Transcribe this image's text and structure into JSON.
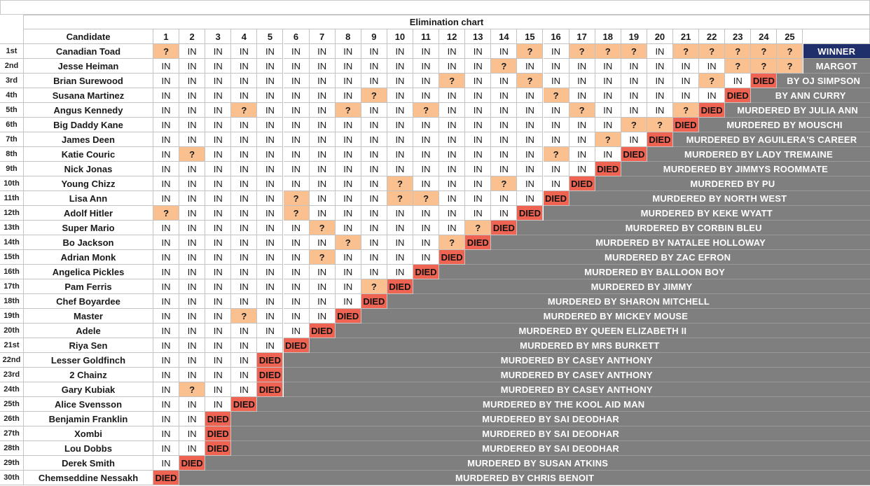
{
  "title": "Elimination chart",
  "header": {
    "candidate_label": "Candidate",
    "weeks": [
      "1",
      "2",
      "3",
      "4",
      "5",
      "6",
      "7",
      "8",
      "9",
      "10",
      "11",
      "12",
      "13",
      "14",
      "15",
      "16",
      "17",
      "18",
      "19",
      "20",
      "21",
      "22",
      "23",
      "24",
      "25"
    ]
  },
  "colors": {
    "in": "#ffffff",
    "question": "#fac090",
    "died": "#ee6351",
    "fate": "#7f7f7f",
    "winner": "#1f2f6b"
  },
  "rows": [
    {
      "rank": "1st",
      "name": "Canadian Toad",
      "results": [
        "?",
        "IN",
        "IN",
        "IN",
        "IN",
        "IN",
        "IN",
        "IN",
        "IN",
        "IN",
        "IN",
        "IN",
        "IN",
        "IN",
        "?",
        "IN",
        "?",
        "?",
        "?",
        "IN",
        "?",
        "?",
        "?",
        "?",
        "?"
      ],
      "fate": "WINNER"
    },
    {
      "rank": "2nd",
      "name": "Jesse Heiman",
      "results": [
        "IN",
        "IN",
        "IN",
        "IN",
        "IN",
        "IN",
        "IN",
        "IN",
        "IN",
        "IN",
        "IN",
        "IN",
        "IN",
        "?",
        "IN",
        "IN",
        "IN",
        "IN",
        "IN",
        "IN",
        "IN",
        "IN",
        "?",
        "?",
        "?"
      ],
      "fate": "MARGOT"
    },
    {
      "rank": "3rd",
      "name": "Brian Surewood",
      "results": [
        "IN",
        "IN",
        "IN",
        "IN",
        "IN",
        "IN",
        "IN",
        "IN",
        "IN",
        "IN",
        "IN",
        "?",
        "IN",
        "IN",
        "?",
        "IN",
        "IN",
        "IN",
        "IN",
        "IN",
        "IN",
        "?",
        "IN",
        "DIED"
      ],
      "fate": "BY OJ SIMPSON"
    },
    {
      "rank": "4th",
      "name": "Susana Martinez",
      "results": [
        "IN",
        "IN",
        "IN",
        "IN",
        "IN",
        "IN",
        "IN",
        "IN",
        "?",
        "IN",
        "IN",
        "IN",
        "IN",
        "IN",
        "IN",
        "?",
        "IN",
        "IN",
        "IN",
        "IN",
        "IN",
        "IN",
        "DIED"
      ],
      "fate": "BY ANN CURRY"
    },
    {
      "rank": "5th",
      "name": "Angus Kennedy",
      "results": [
        "IN",
        "IN",
        "IN",
        "?",
        "IN",
        "IN",
        "IN",
        "?",
        "IN",
        "IN",
        "?",
        "IN",
        "IN",
        "IN",
        "IN",
        "IN",
        "?",
        "IN",
        "IN",
        "IN",
        "?",
        "DIED"
      ],
      "fate": "MURDERED BY JULIA ANN"
    },
    {
      "rank": "6th",
      "name": "Big Daddy Kane",
      "results": [
        "IN",
        "IN",
        "IN",
        "IN",
        "IN",
        "IN",
        "IN",
        "IN",
        "IN",
        "IN",
        "IN",
        "IN",
        "IN",
        "IN",
        "IN",
        "IN",
        "IN",
        "IN",
        "?",
        "?",
        "DIED"
      ],
      "fate": "MURDERED BY MOUSCHI"
    },
    {
      "rank": "7th",
      "name": "James Deen",
      "results": [
        "IN",
        "IN",
        "IN",
        "IN",
        "IN",
        "IN",
        "IN",
        "IN",
        "IN",
        "IN",
        "IN",
        "IN",
        "IN",
        "IN",
        "IN",
        "IN",
        "IN",
        "?",
        "IN",
        "DIED"
      ],
      "fate": "MURDERED BY AGUILERA'S CAREER"
    },
    {
      "rank": "8th",
      "name": "Katie Couric",
      "results": [
        "IN",
        "?",
        "IN",
        "IN",
        "IN",
        "IN",
        "IN",
        "IN",
        "IN",
        "IN",
        "IN",
        "IN",
        "IN",
        "IN",
        "IN",
        "?",
        "IN",
        "IN",
        "DIED"
      ],
      "fate": "MURDERED BY LADY TREMAINE"
    },
    {
      "rank": "9th",
      "name": "Nick Jonas",
      "results": [
        "IN",
        "IN",
        "IN",
        "IN",
        "IN",
        "IN",
        "IN",
        "IN",
        "IN",
        "IN",
        "IN",
        "IN",
        "IN",
        "IN",
        "IN",
        "IN",
        "IN",
        "DIED"
      ],
      "fate": "MURDERED BY JIMMYS ROOMMATE"
    },
    {
      "rank": "10th",
      "name": "Young Chizz",
      "results": [
        "IN",
        "IN",
        "IN",
        "IN",
        "IN",
        "IN",
        "IN",
        "IN",
        "IN",
        "?",
        "IN",
        "IN",
        "IN",
        "?",
        "IN",
        "IN",
        "DIED"
      ],
      "fate": "MURDERED BY PU"
    },
    {
      "rank": "11th",
      "name": "Lisa Ann",
      "results": [
        "IN",
        "IN",
        "IN",
        "IN",
        "IN",
        "?",
        "IN",
        "IN",
        "IN",
        "?",
        "?",
        "IN",
        "IN",
        "IN",
        "IN",
        "DIED"
      ],
      "fate": "MURDERED BY NORTH WEST"
    },
    {
      "rank": "12th",
      "name": "Adolf Hitler",
      "results": [
        "?",
        "IN",
        "IN",
        "IN",
        "IN",
        "?",
        "IN",
        "IN",
        "IN",
        "IN",
        "IN",
        "IN",
        "IN",
        "IN",
        "DIED"
      ],
      "fate": "MURDERED BY KEKE WYATT"
    },
    {
      "rank": "13th",
      "name": "Super Mario",
      "results": [
        "IN",
        "IN",
        "IN",
        "IN",
        "IN",
        "IN",
        "?",
        "IN",
        "IN",
        "IN",
        "IN",
        "IN",
        "?",
        "DIED"
      ],
      "fate": "MURDERED BY CORBIN BLEU"
    },
    {
      "rank": "14th",
      "name": "Bo Jackson",
      "results": [
        "IN",
        "IN",
        "IN",
        "IN",
        "IN",
        "IN",
        "IN",
        "?",
        "IN",
        "IN",
        "IN",
        "?",
        "DIED"
      ],
      "fate": "MURDERED BY NATALEE HOLLOWAY"
    },
    {
      "rank": "15th",
      "name": "Adrian Monk",
      "results": [
        "IN",
        "IN",
        "IN",
        "IN",
        "IN",
        "IN",
        "?",
        "IN",
        "IN",
        "IN",
        "IN",
        "DIED"
      ],
      "fate": "MURDERED BY ZAC EFRON"
    },
    {
      "rank": "16th",
      "name": "Angelica Pickles",
      "results": [
        "IN",
        "IN",
        "IN",
        "IN",
        "IN",
        "IN",
        "IN",
        "IN",
        "IN",
        "IN",
        "DIED"
      ],
      "fate": "MURDERED BY BALLOON BOY"
    },
    {
      "rank": "17th",
      "name": "Pam Ferris",
      "results": [
        "IN",
        "IN",
        "IN",
        "IN",
        "IN",
        "IN",
        "IN",
        "IN",
        "?",
        "DIED"
      ],
      "fate": "MURDERED BY JIMMY"
    },
    {
      "rank": "18th",
      "name": "Chef Boyardee",
      "results": [
        "IN",
        "IN",
        "IN",
        "IN",
        "IN",
        "IN",
        "IN",
        "IN",
        "DIED"
      ],
      "fate": "MURDERED BY SHARON MITCHELL"
    },
    {
      "rank": "19th",
      "name": "Master",
      "results": [
        "IN",
        "IN",
        "IN",
        "?",
        "IN",
        "IN",
        "IN",
        "DIED"
      ],
      "fate": "MURDERED BY MICKEY MOUSE"
    },
    {
      "rank": "20th",
      "name": "Adele",
      "results": [
        "IN",
        "IN",
        "IN",
        "IN",
        "IN",
        "IN",
        "DIED"
      ],
      "fate": "MURDERED BY QUEEN ELIZABETH II"
    },
    {
      "rank": "21st",
      "name": "Riya Sen",
      "results": [
        "IN",
        "IN",
        "IN",
        "IN",
        "IN",
        "DIED"
      ],
      "fate": "MURDERED BY MRS BURKETT"
    },
    {
      "rank": "22nd",
      "name": "Lesser Goldfinch",
      "results": [
        "IN",
        "IN",
        "IN",
        "IN",
        "DIED"
      ],
      "fate": "MURDERED BY CASEY ANTHONY"
    },
    {
      "rank": "23rd",
      "name": "2 Chainz",
      "results": [
        "IN",
        "IN",
        "IN",
        "IN",
        "DIED"
      ],
      "fate": "MURDERED BY CASEY ANTHONY"
    },
    {
      "rank": "24th",
      "name": "Gary Kubiak",
      "results": [
        "IN",
        "?",
        "IN",
        "IN",
        "DIED"
      ],
      "fate": "MURDERED BY CASEY ANTHONY"
    },
    {
      "rank": "25th",
      "name": "Alice Svensson",
      "results": [
        "IN",
        "IN",
        "IN",
        "DIED"
      ],
      "fate": "MURDERED BY THE KOOL AID MAN"
    },
    {
      "rank": "26th",
      "name": "Benjamin Franklin",
      "results": [
        "IN",
        "IN",
        "DIED"
      ],
      "fate": "MURDERED BY SAI DEODHAR"
    },
    {
      "rank": "27th",
      "name": "Xombi",
      "results": [
        "IN",
        "IN",
        "DIED"
      ],
      "fate": "MURDERED BY SAI DEODHAR"
    },
    {
      "rank": "28th",
      "name": "Lou Dobbs",
      "results": [
        "IN",
        "IN",
        "DIED"
      ],
      "fate": "MURDERED BY SAI DEODHAR"
    },
    {
      "rank": "29th",
      "name": "Derek Smith",
      "results": [
        "IN",
        "DIED"
      ],
      "fate": "MURDERED BY SUSAN ATKINS"
    },
    {
      "rank": "30th",
      "name": "Chemseddine Nessakh",
      "results": [
        "DIED"
      ],
      "fate": "MURDERED BY CHRIS BENOIT"
    }
  ]
}
